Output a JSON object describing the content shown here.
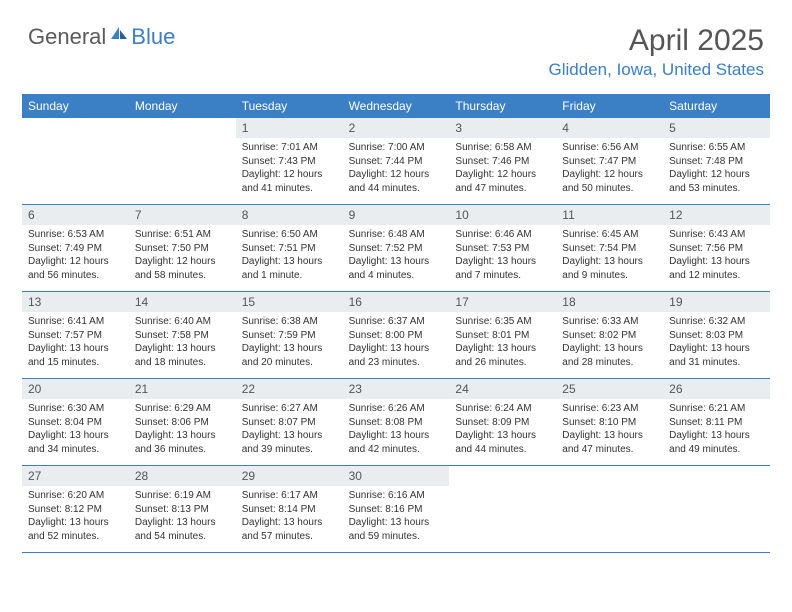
{
  "logo": {
    "text1": "General",
    "text2": "Blue"
  },
  "title": "April 2025",
  "location": "Glidden, Iowa, United States",
  "colors": {
    "accent": "#3b7fc4",
    "header_bg": "#3b7fc4",
    "daynum_bg": "#e9edef",
    "text": "#333333",
    "title_text": "#555555"
  },
  "weekdays": [
    "Sunday",
    "Monday",
    "Tuesday",
    "Wednesday",
    "Thursday",
    "Friday",
    "Saturday"
  ],
  "weeks": [
    [
      {
        "n": "",
        "sr": "",
        "ss": "",
        "dl": ""
      },
      {
        "n": "",
        "sr": "",
        "ss": "",
        "dl": ""
      },
      {
        "n": "1",
        "sr": "Sunrise: 7:01 AM",
        "ss": "Sunset: 7:43 PM",
        "dl": "Daylight: 12 hours and 41 minutes."
      },
      {
        "n": "2",
        "sr": "Sunrise: 7:00 AM",
        "ss": "Sunset: 7:44 PM",
        "dl": "Daylight: 12 hours and 44 minutes."
      },
      {
        "n": "3",
        "sr": "Sunrise: 6:58 AM",
        "ss": "Sunset: 7:46 PM",
        "dl": "Daylight: 12 hours and 47 minutes."
      },
      {
        "n": "4",
        "sr": "Sunrise: 6:56 AM",
        "ss": "Sunset: 7:47 PM",
        "dl": "Daylight: 12 hours and 50 minutes."
      },
      {
        "n": "5",
        "sr": "Sunrise: 6:55 AM",
        "ss": "Sunset: 7:48 PM",
        "dl": "Daylight: 12 hours and 53 minutes."
      }
    ],
    [
      {
        "n": "6",
        "sr": "Sunrise: 6:53 AM",
        "ss": "Sunset: 7:49 PM",
        "dl": "Daylight: 12 hours and 56 minutes."
      },
      {
        "n": "7",
        "sr": "Sunrise: 6:51 AM",
        "ss": "Sunset: 7:50 PM",
        "dl": "Daylight: 12 hours and 58 minutes."
      },
      {
        "n": "8",
        "sr": "Sunrise: 6:50 AM",
        "ss": "Sunset: 7:51 PM",
        "dl": "Daylight: 13 hours and 1 minute."
      },
      {
        "n": "9",
        "sr": "Sunrise: 6:48 AM",
        "ss": "Sunset: 7:52 PM",
        "dl": "Daylight: 13 hours and 4 minutes."
      },
      {
        "n": "10",
        "sr": "Sunrise: 6:46 AM",
        "ss": "Sunset: 7:53 PM",
        "dl": "Daylight: 13 hours and 7 minutes."
      },
      {
        "n": "11",
        "sr": "Sunrise: 6:45 AM",
        "ss": "Sunset: 7:54 PM",
        "dl": "Daylight: 13 hours and 9 minutes."
      },
      {
        "n": "12",
        "sr": "Sunrise: 6:43 AM",
        "ss": "Sunset: 7:56 PM",
        "dl": "Daylight: 13 hours and 12 minutes."
      }
    ],
    [
      {
        "n": "13",
        "sr": "Sunrise: 6:41 AM",
        "ss": "Sunset: 7:57 PM",
        "dl": "Daylight: 13 hours and 15 minutes."
      },
      {
        "n": "14",
        "sr": "Sunrise: 6:40 AM",
        "ss": "Sunset: 7:58 PM",
        "dl": "Daylight: 13 hours and 18 minutes."
      },
      {
        "n": "15",
        "sr": "Sunrise: 6:38 AM",
        "ss": "Sunset: 7:59 PM",
        "dl": "Daylight: 13 hours and 20 minutes."
      },
      {
        "n": "16",
        "sr": "Sunrise: 6:37 AM",
        "ss": "Sunset: 8:00 PM",
        "dl": "Daylight: 13 hours and 23 minutes."
      },
      {
        "n": "17",
        "sr": "Sunrise: 6:35 AM",
        "ss": "Sunset: 8:01 PM",
        "dl": "Daylight: 13 hours and 26 minutes."
      },
      {
        "n": "18",
        "sr": "Sunrise: 6:33 AM",
        "ss": "Sunset: 8:02 PM",
        "dl": "Daylight: 13 hours and 28 minutes."
      },
      {
        "n": "19",
        "sr": "Sunrise: 6:32 AM",
        "ss": "Sunset: 8:03 PM",
        "dl": "Daylight: 13 hours and 31 minutes."
      }
    ],
    [
      {
        "n": "20",
        "sr": "Sunrise: 6:30 AM",
        "ss": "Sunset: 8:04 PM",
        "dl": "Daylight: 13 hours and 34 minutes."
      },
      {
        "n": "21",
        "sr": "Sunrise: 6:29 AM",
        "ss": "Sunset: 8:06 PM",
        "dl": "Daylight: 13 hours and 36 minutes."
      },
      {
        "n": "22",
        "sr": "Sunrise: 6:27 AM",
        "ss": "Sunset: 8:07 PM",
        "dl": "Daylight: 13 hours and 39 minutes."
      },
      {
        "n": "23",
        "sr": "Sunrise: 6:26 AM",
        "ss": "Sunset: 8:08 PM",
        "dl": "Daylight: 13 hours and 42 minutes."
      },
      {
        "n": "24",
        "sr": "Sunrise: 6:24 AM",
        "ss": "Sunset: 8:09 PM",
        "dl": "Daylight: 13 hours and 44 minutes."
      },
      {
        "n": "25",
        "sr": "Sunrise: 6:23 AM",
        "ss": "Sunset: 8:10 PM",
        "dl": "Daylight: 13 hours and 47 minutes."
      },
      {
        "n": "26",
        "sr": "Sunrise: 6:21 AM",
        "ss": "Sunset: 8:11 PM",
        "dl": "Daylight: 13 hours and 49 minutes."
      }
    ],
    [
      {
        "n": "27",
        "sr": "Sunrise: 6:20 AM",
        "ss": "Sunset: 8:12 PM",
        "dl": "Daylight: 13 hours and 52 minutes."
      },
      {
        "n": "28",
        "sr": "Sunrise: 6:19 AM",
        "ss": "Sunset: 8:13 PM",
        "dl": "Daylight: 13 hours and 54 minutes."
      },
      {
        "n": "29",
        "sr": "Sunrise: 6:17 AM",
        "ss": "Sunset: 8:14 PM",
        "dl": "Daylight: 13 hours and 57 minutes."
      },
      {
        "n": "30",
        "sr": "Sunrise: 6:16 AM",
        "ss": "Sunset: 8:16 PM",
        "dl": "Daylight: 13 hours and 59 minutes."
      },
      {
        "n": "",
        "sr": "",
        "ss": "",
        "dl": ""
      },
      {
        "n": "",
        "sr": "",
        "ss": "",
        "dl": ""
      },
      {
        "n": "",
        "sr": "",
        "ss": "",
        "dl": ""
      }
    ]
  ]
}
